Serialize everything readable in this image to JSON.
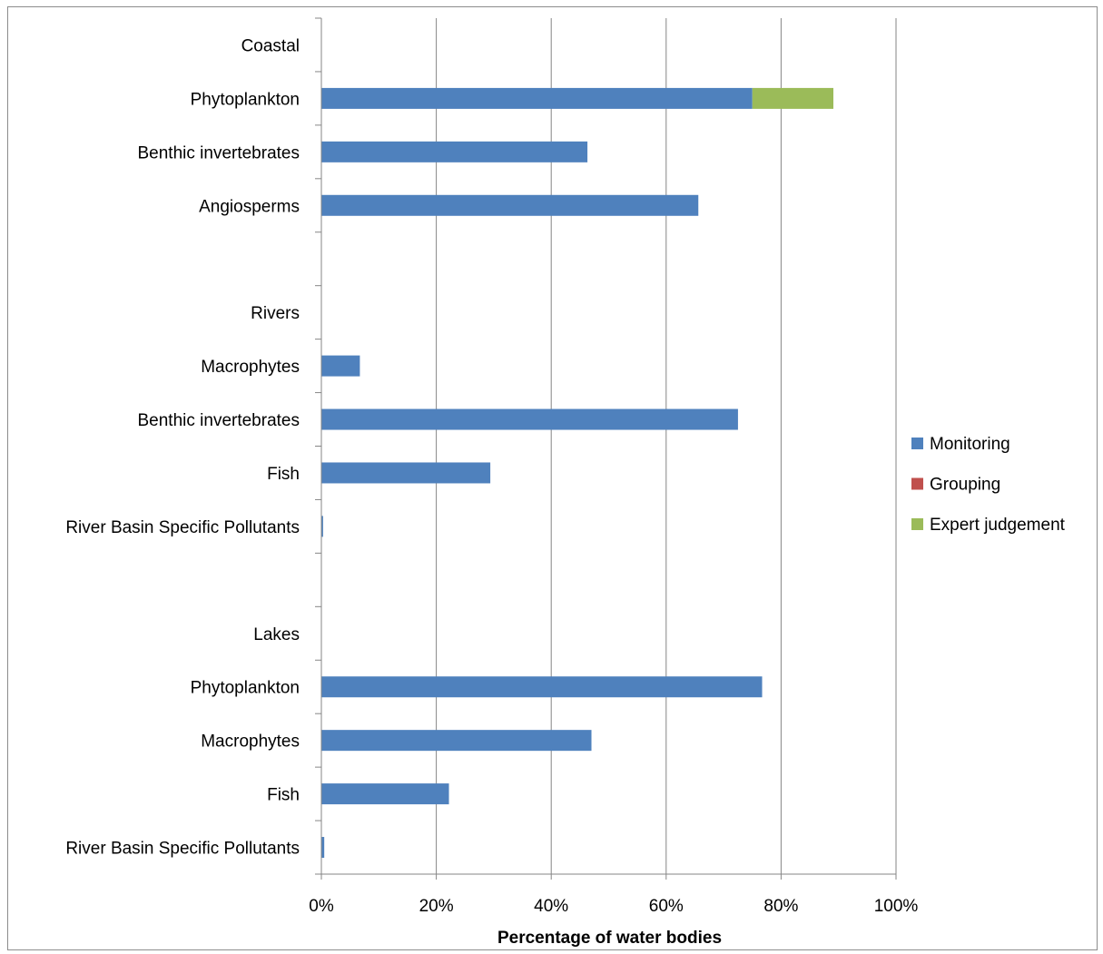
{
  "chart_data": {
    "type": "bar",
    "orientation": "horizontal",
    "stacked": true,
    "categories": [
      "Coastal",
      "Phytoplankton",
      "Benthic invertebrates",
      "Angiosperms",
      "",
      "Rivers",
      "Macrophytes",
      "Benthic invertebrates",
      "Fish",
      "River Basin Specific Pollutants",
      "",
      "Lakes",
      "Phytoplankton",
      "Macrophytes",
      "Fish",
      "River Basin Specific Pollutants"
    ],
    "series": [
      {
        "name": "Monitoring",
        "color": "#4f81bd",
        "values": [
          null,
          75,
          46.3,
          65.6,
          null,
          null,
          6.7,
          72.5,
          29.4,
          0.3,
          null,
          null,
          76.7,
          47,
          22.2,
          0.5
        ]
      },
      {
        "name": "Grouping",
        "color": "#c0504d",
        "values": [
          null,
          0,
          0,
          0,
          null,
          null,
          0,
          0,
          0,
          0,
          null,
          null,
          0,
          0,
          0,
          0
        ]
      },
      {
        "name": "Expert judgement",
        "color": "#9bbb59",
        "values": [
          null,
          14.1,
          0,
          0,
          null,
          null,
          0,
          0,
          0,
          0,
          null,
          null,
          0,
          0,
          0,
          0
        ]
      }
    ],
    "xlim": [
      0,
      100
    ],
    "xticks": [
      "0%",
      "20%",
      "40%",
      "60%",
      "80%",
      "100%"
    ],
    "xlabel": "Percentage of water bodies",
    "ylabel": "",
    "grid": "vertical",
    "legend_position": "right"
  }
}
